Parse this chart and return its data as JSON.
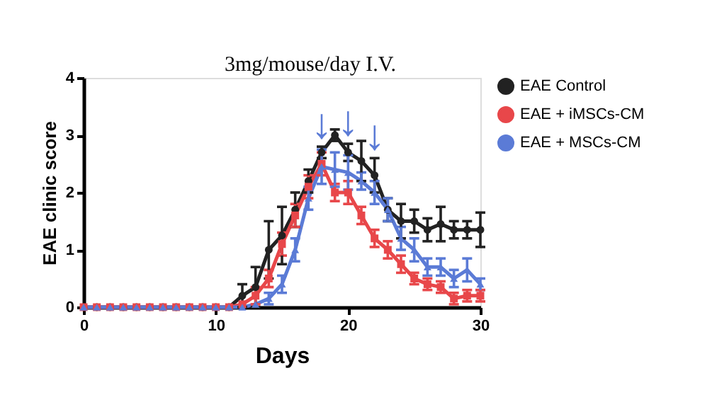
{
  "chart_data": {
    "type": "line",
    "xlabel": "Days",
    "ylabel": "EAE clinic score",
    "annotations": [
      "3mg/mouse/day I.V.",
      {
        "text": "↓",
        "x": 18,
        "y": 2.8
      },
      {
        "text": "↓",
        "x": 20,
        "y": 2.85
      },
      {
        "text": "↓",
        "x": 22,
        "y": 2.6
      }
    ],
    "x": [
      0,
      1,
      2,
      3,
      4,
      5,
      6,
      7,
      8,
      9,
      10,
      11,
      12,
      13,
      14,
      15,
      16,
      17,
      18,
      19,
      20,
      21,
      22,
      23,
      24,
      25,
      26,
      27,
      28,
      29,
      30
    ],
    "xlim": [
      0,
      30
    ],
    "xticks": [
      0,
      10,
      20,
      30
    ],
    "ylim": [
      0,
      4
    ],
    "yticks": [
      0,
      1,
      2,
      3,
      4
    ],
    "grid": false,
    "legend": "top right",
    "line_style": "solid",
    "series": [
      {
        "name": "EAE Control",
        "color": "#222222",
        "marker": "circle",
        "values": [
          0,
          0,
          0,
          0,
          0,
          0,
          0,
          0,
          0,
          0,
          0,
          0,
          0.2,
          0.35,
          1.0,
          1.25,
          1.7,
          2.2,
          2.7,
          3.0,
          2.7,
          2.55,
          2.3,
          1.7,
          1.5,
          1.5,
          1.35,
          1.45,
          1.35,
          1.35,
          1.35
        ],
        "errors": [
          null,
          null,
          null,
          null,
          null,
          null,
          null,
          null,
          null,
          null,
          null,
          null,
          0.2,
          0.35,
          0.5,
          0.5,
          0.3,
          0.2,
          0.1,
          0.1,
          0.15,
          0.35,
          0.3,
          0.2,
          0.3,
          0.2,
          0.2,
          0.3,
          0.15,
          0.15,
          0.3
        ]
      },
      {
        "name": "EAE + iMSCs-CM",
        "color": "#e8474a",
        "marker": "square",
        "values": [
          0,
          0,
          0,
          0,
          0,
          0,
          0,
          0,
          0,
          0,
          0,
          0,
          0.05,
          0.2,
          0.5,
          1.1,
          1.6,
          2.1,
          2.5,
          2.0,
          2.0,
          1.6,
          1.2,
          1.0,
          0.75,
          0.5,
          0.4,
          0.35,
          0.15,
          0.2,
          0.2
        ],
        "errors": [
          null,
          null,
          null,
          null,
          null,
          null,
          null,
          null,
          null,
          null,
          null,
          null,
          null,
          0.15,
          0.15,
          0.2,
          0.2,
          0.2,
          0.2,
          0.15,
          0.2,
          0.15,
          0.15,
          0.15,
          0.15,
          0.1,
          0.1,
          0.1,
          0.1,
          0.1,
          0.1
        ]
      },
      {
        "name": "EAE + MSCs-CM",
        "color": "#5b7bd6",
        "marker": "triangle",
        "values": [
          0,
          0,
          0,
          0,
          0,
          0,
          0,
          0,
          0,
          0,
          0,
          0,
          0,
          0.05,
          0.15,
          0.4,
          1.0,
          1.9,
          2.45,
          2.4,
          2.35,
          2.2,
          2.0,
          1.7,
          1.2,
          1.0,
          0.7,
          0.7,
          0.5,
          0.65,
          0.4
        ],
        "errors": [
          null,
          null,
          null,
          null,
          null,
          null,
          null,
          null,
          null,
          null,
          null,
          null,
          null,
          null,
          0.1,
          0.15,
          0.2,
          0.2,
          0.3,
          0.3,
          0.3,
          0.15,
          0.2,
          0.2,
          0.2,
          0.2,
          0.15,
          0.15,
          0.15,
          0.2,
          0.1
        ]
      }
    ]
  }
}
